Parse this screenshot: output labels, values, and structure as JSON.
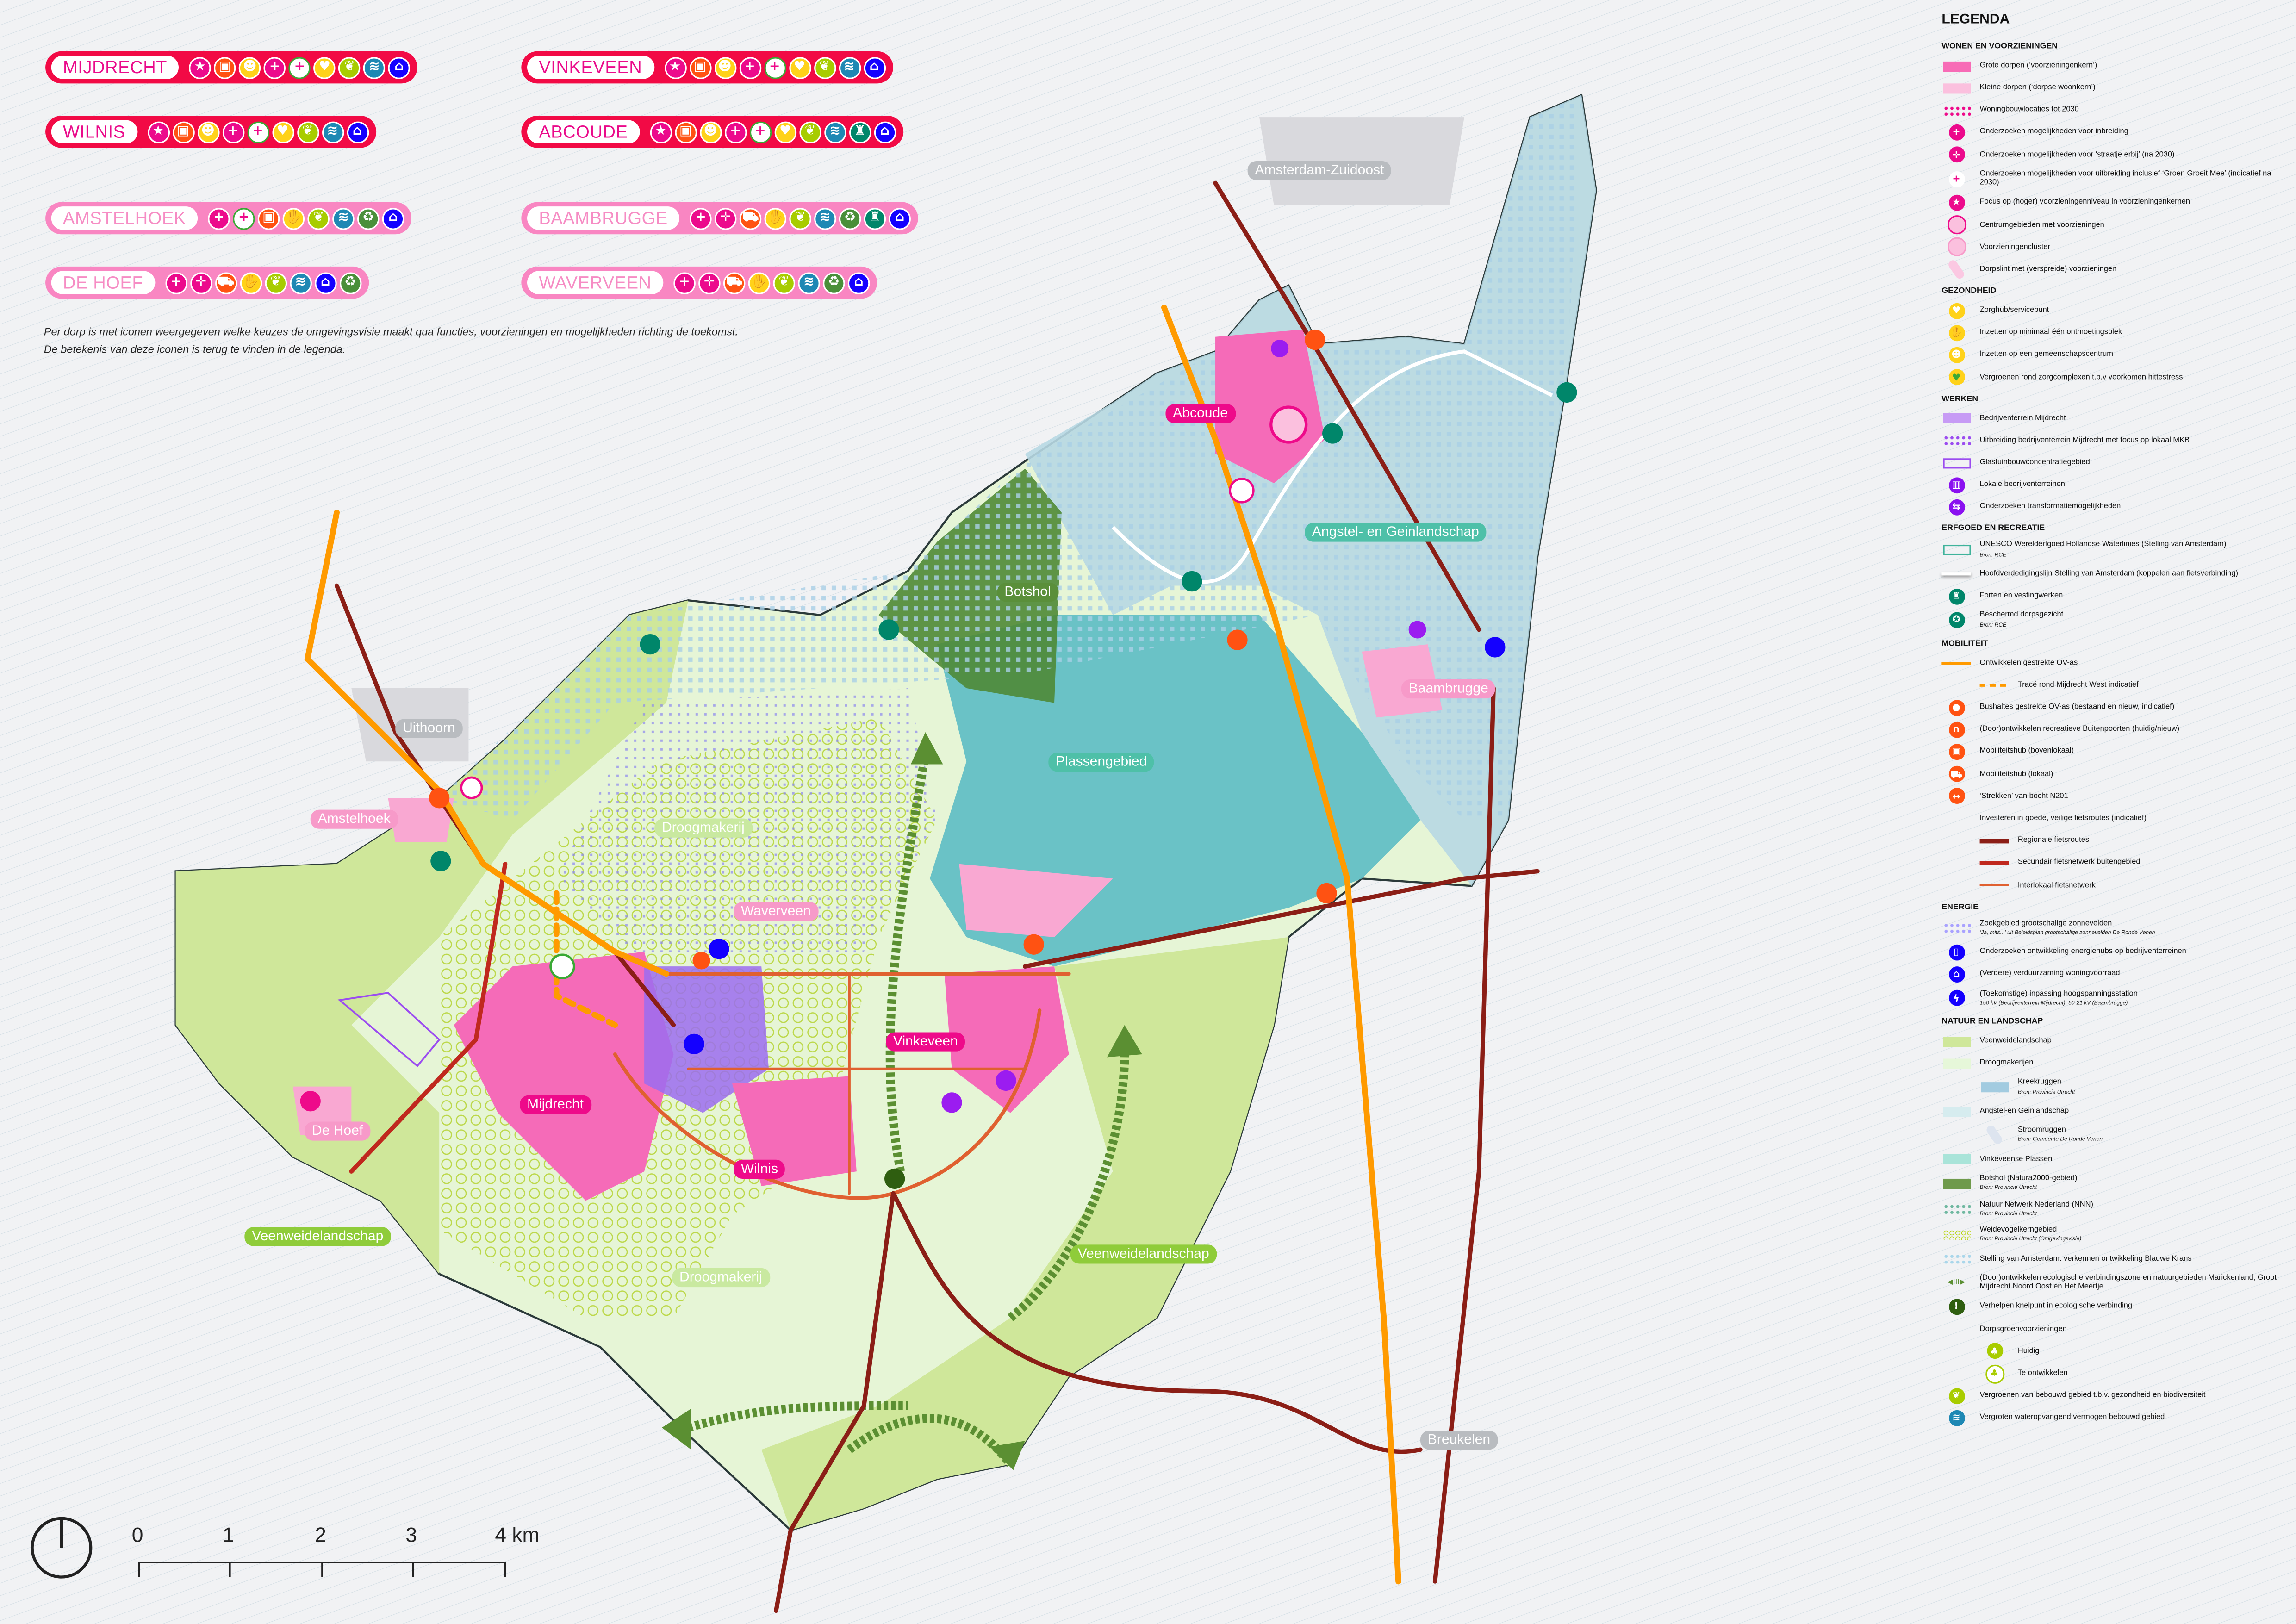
{
  "colors": {
    "large_village": "#f20a45",
    "small_village": "#f986c2",
    "magenta": "#ea0a8a",
    "ov_axis": "#ff9a00",
    "regional_bike": "#8b1e16",
    "secondary_bike": "#c0281e",
    "interlocal_bike": "#e06030",
    "veenweide": "#cfe79a",
    "droogmakerij": "#e6f5d6",
    "plassen": "#5cbcc4",
    "angstel": "#bcdde6",
    "botshol": "#4f8a36"
  },
  "villages": [
    {
      "name": "MIJDRECHT",
      "size": "large",
      "icons": [
        "star",
        "bus",
        "community",
        "plus",
        "plus-green",
        "heart",
        "leaf",
        "water",
        "house"
      ]
    },
    {
      "name": "VINKEVEEN",
      "size": "large",
      "icons": [
        "star",
        "bus",
        "community",
        "plus",
        "plus-green",
        "heart",
        "leaf",
        "water",
        "house"
      ]
    },
    {
      "name": "WILNIS",
      "size": "large",
      "icons": [
        "star",
        "bus",
        "community",
        "plus",
        "plus-green",
        "heart",
        "leaf",
        "water",
        "house"
      ]
    },
    {
      "name": "ABCOUDE",
      "size": "large",
      "icons": [
        "star",
        "bus",
        "community",
        "plus",
        "plus-green",
        "heart",
        "leaf",
        "water",
        "fort",
        "house"
      ]
    },
    {
      "name": "AMSTELHOEK",
      "size": "small",
      "icons": [
        "plus",
        "plus-green",
        "bus",
        "hand",
        "leaf",
        "water",
        "recycle-plant",
        "house"
      ]
    },
    {
      "name": "BAAMBRUGGE",
      "size": "small",
      "icons": [
        "plus",
        "plus-dotted",
        "car",
        "hand",
        "leaf",
        "water",
        "recycle-plant",
        "fort",
        "house"
      ]
    },
    {
      "name": "DE HOEF",
      "size": "small",
      "icons": [
        "plus",
        "plus-dotted",
        "car",
        "hand",
        "leaf",
        "water",
        "house",
        "recycle-plant"
      ]
    },
    {
      "name": "WAVERVEEN",
      "size": "small",
      "icons": [
        "plus",
        "plus-dotted",
        "car",
        "hand",
        "leaf",
        "water",
        "recycle-plant",
        "house"
      ]
    }
  ],
  "note": {
    "line1": "Per dorp is met iconen weergegeven welke keuzes de omgevingsvisie maakt qua functies, voorzieningen en mogelijkheden richting de toekomst.",
    "line2": "De betekenis van deze iconen is terug te vinden in de legenda."
  },
  "map_labels": [
    {
      "text": "Amsterdam-Zuidoost",
      "style": "grey"
    },
    {
      "text": "Abcoude",
      "style": "pinkbig"
    },
    {
      "text": "Angstel- en Geinlandschap",
      "style": "teal"
    },
    {
      "text": "Botshol",
      "style": "dark"
    },
    {
      "text": "Baambrugge",
      "style": "pinksmall"
    },
    {
      "text": "Plassengebied",
      "style": "teal"
    },
    {
      "text": "Uithoorn",
      "style": "grey"
    },
    {
      "text": "Amstelhoek",
      "style": "pinksmall"
    },
    {
      "text": "Droogmakerij",
      "style": "lightgreen"
    },
    {
      "text": "Waverveen",
      "style": "pinksmall"
    },
    {
      "text": "Vinkeveen",
      "style": "pinkbig"
    },
    {
      "text": "Mijdrecht",
      "style": "pinkbig"
    },
    {
      "text": "De Hoef",
      "style": "pinksmall"
    },
    {
      "text": "Wilnis",
      "style": "pinkbig"
    },
    {
      "text": "Veenweidelandschap",
      "style": "green"
    },
    {
      "text": "Droogmakerij",
      "style": "lightgreen"
    },
    {
      "text": "Veenweidelandschap",
      "style": "green"
    },
    {
      "text": "Breukelen",
      "style": "grey"
    }
  ],
  "scale": {
    "ticks": [
      "0",
      "1",
      "2",
      "3",
      "4 km"
    ]
  },
  "legend": {
    "title": "LEGENDA",
    "sections": [
      {
        "title": "WONEN EN VOORZIENINGEN",
        "items": [
          {
            "label": "Grote dorpen (‘voorzieningenkern’)",
            "sym": "swatch:#f76bb6"
          },
          {
            "label": "Kleine dorpen (‘dorpse woonkern’)",
            "sym": "swatch:#fbc0de"
          },
          {
            "label": "Woningbouwlocaties tot 2030",
            "sym": "dots:#ee0a8a"
          },
          {
            "label": "Onderzoeken mogelijkheden voor inbreiding",
            "sym": "plus"
          },
          {
            "label": "Onderzoeken mogelijkheden voor ‘straatje erbij’ (na 2030)",
            "sym": "plus-dotted"
          },
          {
            "label": "Onderzoeken mogelijkheden voor uitbreiding inclusief ‘Groen Groeit Mee’ (indicatief na 2030)",
            "sym": "plus-green"
          },
          {
            "label": "Focus op (hoger) voorzieningenniveau in voorzieningenkernen",
            "sym": "star"
          },
          {
            "label": "Centrumgebieden met voorzieningen",
            "sym": "ring:#ee0a8a"
          },
          {
            "label": "Voorzieningencluster",
            "sym": "ring:#f79ac9"
          },
          {
            "label": "Dorpslint met (verspreide) voorzieningen",
            "sym": "band:#fbc8e2"
          }
        ]
      },
      {
        "title": "GEZONDHEID",
        "items": [
          {
            "label": "Zorghub/servicepunt",
            "sym": "heart"
          },
          {
            "label": "Inzetten op minimaal één ontmoetingsplek",
            "sym": "hand"
          },
          {
            "label": "Inzetten op een gemeenschapscentrum",
            "sym": "community"
          },
          {
            "label": "Vergroenen rond zorgcomplexen t.b.v voorkomen hittestress",
            "sym": "heart-green"
          }
        ]
      },
      {
        "title": "WERKEN",
        "items": [
          {
            "label": "Bedrijventerrein Mijdrecht",
            "sym": "swatch:#c79bf5"
          },
          {
            "label": "Uitbreiding bedrijventerrein Mijdrecht met focus op lokaal MKB",
            "sym": "dots:#9b4cf0"
          },
          {
            "label": "Glastuinbouwconcentratiegebied",
            "sym": "outline:#9b4cf0"
          },
          {
            "label": "Lokale bedrijventerreinen",
            "sym": "factory"
          },
          {
            "label": "Onderzoeken transformatiemogelijkheden",
            "sym": "transform"
          }
        ]
      },
      {
        "title": "ERFGOED EN RECREATIE",
        "items": [
          {
            "label": "UNESCO Werelderfgoed Hollandse Waterlinies (Stelling van Amsterdam)",
            "source": "Bron: RCE",
            "sym": "outline:#3fb39b"
          },
          {
            "label": "Hoofdverdedigingslijn Stelling van Amsterdam (koppelen aan fietsverbinding)",
            "sym": "line:#ffffff"
          },
          {
            "label": "Forten en vestingwerken",
            "sym": "fort"
          },
          {
            "label": "Beschermd dorpsgezicht",
            "source": "Bron: RCE",
            "sym": "fort-star"
          }
        ]
      },
      {
        "title": "MOBILITEIT",
        "items": [
          {
            "label": "Ontwikkelen gestrekte OV-as",
            "sym": "line:#ff9a00"
          },
          {
            "label": "Tracé rond Mijdrecht West indicatief",
            "sym": "dash:#ff9a00",
            "indent": true
          },
          {
            "label": "Bushaltes gestrekte OV-as (bestaand en nieuw, indicatief)",
            "sym": "busstop"
          },
          {
            "label": "(Door)ontwikkelen recreatieve Buitenpoorten (huidig/nieuw)",
            "sym": "gate"
          },
          {
            "label": "Mobiliteitshub (bovenlokaal)",
            "sym": "bus"
          },
          {
            "label": "Mobiliteitshub (lokaal)",
            "sym": "car"
          },
          {
            "label": "‘Strekken’ van bocht N201",
            "sym": "arrows"
          },
          {
            "label": "Investeren in goede, veilige fietsroutes (indicatief)",
            "sym": "none"
          },
          {
            "label": "Regionale fietsroutes",
            "sym": "line:#8b1e16",
            "indent": true
          },
          {
            "label": "Secundair fietsnetwerk buitengebied",
            "sym": "line:#c0281e",
            "indent": true
          },
          {
            "label": "Interlokaal fietsnetwerk",
            "sym": "thin:#e06030",
            "indent": true
          }
        ]
      },
      {
        "title": "ENERGIE",
        "items": [
          {
            "label": "Zoekgebied grootschalige zonnevelden",
            "source": "‘Ja, mits...’ uit Beleidsplan grootschalige zonnevelden De Ronde Venen",
            "sym": "dots:#a9a2ff"
          },
          {
            "label": "Onderzoeken ontwikkeling energiehubs op bedrijventerreinen",
            "sym": "battery"
          },
          {
            "label": "(Verdere) verduurzaming woningvoorraad",
            "sym": "house"
          },
          {
            "label": "(Toekomstige) inpassing hoogspanningsstation",
            "source": "150 kV (Bedrijventerrein Mijdrecht), 50-21 kV (Baambrugge)",
            "sym": "bolt"
          }
        ]
      },
      {
        "title": "NATUUR EN LANDSCHAP",
        "items": [
          {
            "label": "Veenweidelandschap",
            "sym": "swatch:#cfe79a"
          },
          {
            "label": "Droogmakerijen",
            "sym": "swatch:#e6f7d9"
          },
          {
            "label": "Kreekruggen",
            "source": "Bron: Provincie Utrecht",
            "sym": "swatch:#a2cbe0",
            "indent": true
          },
          {
            "label": "Angstel-en Geinlandschap",
            "sym": "swatch:#d6ecef"
          },
          {
            "label": "Stroomruggen",
            "source": "Bron: Gemeente De Ronde Venen",
            "sym": "band:#dde4ef",
            "indent": true
          },
          {
            "label": "Vinkeveense Plassen",
            "sym": "swatch:#a9e4d9"
          },
          {
            "label": "Botshol (Natura2000-gebied)",
            "source": "Bron: Provincie Utrecht",
            "sym": "swatch:#6f9a4c"
          },
          {
            "label": "Natuur Netwerk Nederland (NNN)",
            "source": "Bron: Provincie Utrecht",
            "sym": "dots:#6fb8a0"
          },
          {
            "label": "Weidevogelkerngebied",
            "source": "Bron: Provincie Utrecht (Omgevingsvisie)",
            "sym": "rings:#b6d400"
          },
          {
            "label": "Stelling van Amsterdam: verkennen ontwikkeling Blauwe Krans",
            "sym": "dots:#a9d6ea"
          },
          {
            "label": "(Door)ontwikkelen ecologische verbindingszone en natuurgebieden Marickenland, Groot Mijdrecht Noord Oost en Het Meertje",
            "sym": "eco-arrow"
          },
          {
            "label": "Verhelpen knelpunt in ecologische verbinding",
            "sym": "exclaim"
          },
          {
            "label": "Dorpsgroenvoorzieningen",
            "sym": "none"
          },
          {
            "label": "Huidig",
            "sym": "tree",
            "indent": true
          },
          {
            "label": "Te ontwikkelen",
            "sym": "tree-outline",
            "indent": true
          },
          {
            "label": "Vergroenen van bebouwd gebied t.b.v. gezondheid en biodiversiteit",
            "sym": "leaf"
          },
          {
            "label": "Vergroten wateropvangend vermogen bebouwd gebied",
            "sym": "water"
          }
        ]
      }
    ]
  }
}
